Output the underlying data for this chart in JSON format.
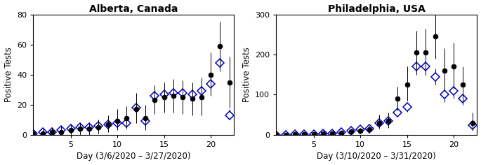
{
  "alberta": {
    "title": "Alberta, Canada",
    "xlabel": "Day (3/6/2020 – 3/27/2020)",
    "ylabel": "Positive Tests",
    "ylim": [
      0,
      80
    ],
    "yticks": [
      0,
      20,
      40,
      60,
      80
    ],
    "xlim": [
      1,
      22.5
    ],
    "xticks": [
      5,
      10,
      15,
      20
    ],
    "black_y": [
      1,
      1,
      2,
      2,
      3,
      4,
      4,
      5,
      7,
      9,
      11,
      17,
      11,
      23,
      25,
      26,
      25,
      24,
      25,
      40,
      59,
      35
    ],
    "black_lo": [
      0,
      0,
      0,
      0,
      0,
      0,
      0,
      1,
      2,
      3,
      4,
      8,
      3,
      14,
      15,
      15,
      14,
      13,
      13,
      26,
      44,
      18
    ],
    "black_hi": [
      3,
      4,
      5,
      6,
      7,
      8,
      8,
      10,
      13,
      17,
      19,
      28,
      20,
      33,
      35,
      37,
      36,
      35,
      38,
      55,
      75,
      52
    ],
    "blue_y": [
      1,
      2,
      2,
      3,
      4,
      5,
      5,
      6,
      7,
      8,
      8,
      18,
      9,
      26,
      27,
      28,
      28,
      27,
      29,
      34,
      48,
      13
    ],
    "blue_lo": [
      0,
      0,
      0,
      1,
      1,
      2,
      2,
      2,
      3,
      4,
      5,
      14,
      6,
      22,
      23,
      24,
      24,
      23,
      25,
      29,
      42,
      10
    ],
    "blue_hi": [
      2,
      3,
      4,
      5,
      6,
      7,
      7,
      9,
      10,
      12,
      12,
      22,
      13,
      30,
      31,
      32,
      32,
      31,
      33,
      39,
      53,
      17
    ]
  },
  "philly": {
    "title": "Philadelphia, USA",
    "xlabel": "Day (3/10/2020 – 3/31/2020)",
    "ylabel": "Positive Tests",
    "ylim": [
      0,
      300
    ],
    "yticks": [
      0,
      100,
      200,
      300
    ],
    "xlim": [
      1,
      22.5
    ],
    "xticks": [
      5,
      10,
      15,
      20
    ],
    "black_y": [
      0,
      0,
      1,
      1,
      2,
      3,
      4,
      5,
      9,
      11,
      13,
      30,
      35,
      90,
      125,
      205,
      205,
      245,
      160,
      170,
      125,
      30
    ],
    "black_lo": [
      0,
      0,
      0,
      0,
      0,
      0,
      1,
      1,
      3,
      4,
      5,
      15,
      18,
      60,
      85,
      155,
      150,
      190,
      110,
      115,
      78,
      10
    ],
    "black_hi": [
      1,
      2,
      3,
      3,
      5,
      6,
      8,
      10,
      15,
      18,
      22,
      50,
      55,
      120,
      170,
      260,
      265,
      300,
      215,
      230,
      170,
      55
    ],
    "blue_y": [
      0,
      0,
      1,
      1,
      2,
      3,
      4,
      6,
      10,
      13,
      15,
      30,
      35,
      55,
      70,
      170,
      170,
      145,
      100,
      110,
      90,
      25
    ],
    "blue_lo": [
      0,
      0,
      0,
      0,
      0,
      1,
      1,
      2,
      4,
      5,
      7,
      22,
      26,
      45,
      57,
      150,
      148,
      125,
      82,
      90,
      74,
      18
    ],
    "blue_hi": [
      1,
      1,
      2,
      2,
      4,
      5,
      7,
      9,
      14,
      17,
      21,
      40,
      46,
      65,
      82,
      190,
      192,
      165,
      118,
      130,
      106,
      33
    ]
  },
  "black_color": "#000000",
  "blue_color": "#0000bb",
  "markersize_black": 5,
  "markersize_blue": 6,
  "diamond_small_size": 4,
  "title_fontsize": 10,
  "label_fontsize": 8.5,
  "tick_fontsize": 8
}
